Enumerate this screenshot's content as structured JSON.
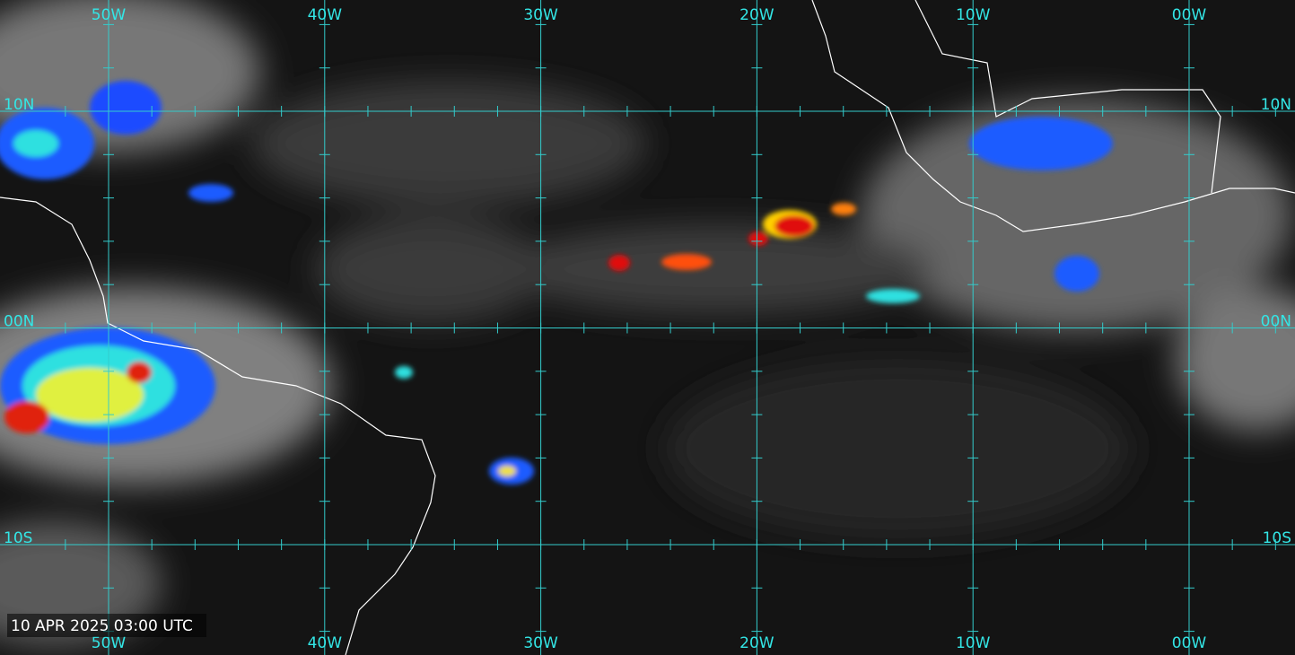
{
  "map": {
    "timestamp": "10 APR 2025 03:00 UTC",
    "longitude_labels": [
      "50W",
      "40W",
      "30W",
      "20W",
      "10W",
      "00W"
    ],
    "latitude_labels": [
      "10N",
      "00N",
      "10S"
    ]
  }
}
